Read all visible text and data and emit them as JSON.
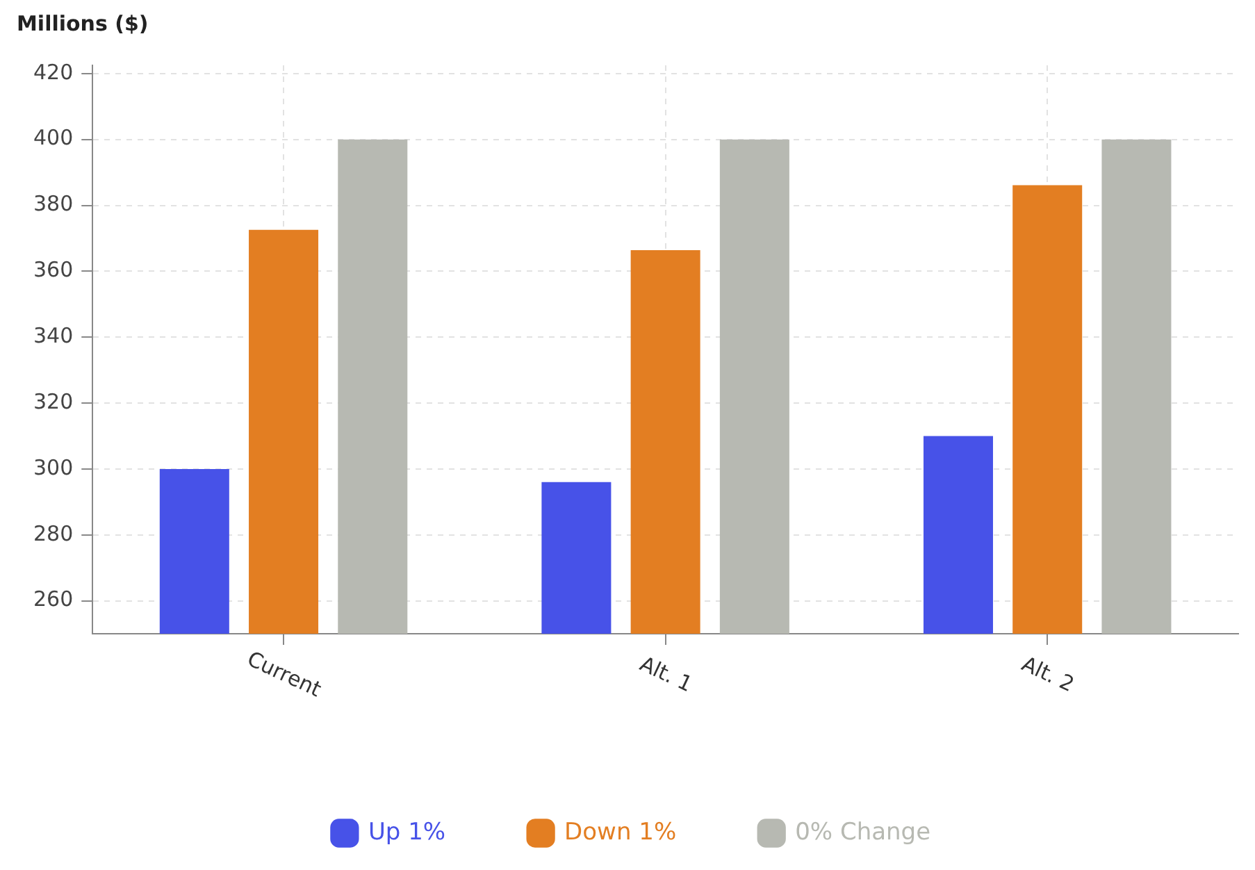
{
  "chart_data": {
    "type": "bar",
    "ylabel": "Millions ($)",
    "categories": [
      "Current",
      "Alt. 1",
      "Alt. 2"
    ],
    "series": [
      {
        "name": "Up 1%",
        "color": "#4752e8",
        "values": [
          300,
          296,
          310
        ]
      },
      {
        "name": "Down 1%",
        "color": "#e37e22",
        "values": [
          372.6,
          366.4,
          386.1
        ]
      },
      {
        "name": "0% Change",
        "color": "#b7b9b2",
        "values": [
          400,
          400,
          400
        ]
      }
    ],
    "ylim": [
      250,
      422.5
    ],
    "yticks": [
      260,
      280,
      300,
      320,
      340,
      360,
      380,
      400,
      420
    ],
    "grid": true,
    "legend": "bottom"
  }
}
